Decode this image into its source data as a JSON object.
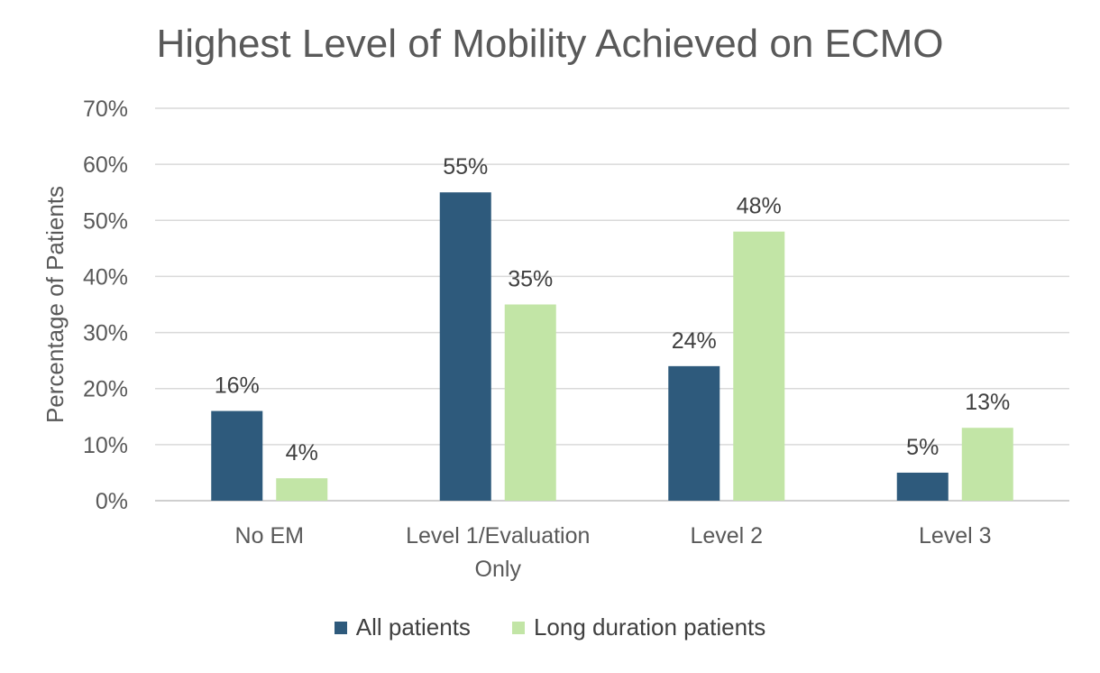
{
  "chart_data": {
    "type": "bar",
    "title": "Highest Level of Mobility Achieved on ECMO",
    "xlabel": "",
    "ylabel": "Percentage of Patients",
    "categories": [
      "No EM",
      "Level 1/Evaluation Only",
      "Level 2",
      "Level 3"
    ],
    "category_lines": [
      [
        "No EM"
      ],
      [
        "Level 1/Evaluation",
        "Only"
      ],
      [
        "Level 2"
      ],
      [
        "Level 3"
      ]
    ],
    "series": [
      {
        "name": "All patients",
        "values": [
          16,
          55,
          24,
          5
        ],
        "labels": [
          "16%",
          "55%",
          "24%",
          "5%"
        ],
        "color": "#2e5a7c"
      },
      {
        "name": "Long duration patients",
        "values": [
          4,
          35,
          48,
          13
        ],
        "labels": [
          "4%",
          "35%",
          "48%",
          "13%"
        ],
        "color": "#c2e5a6"
      }
    ],
    "ylim": [
      0,
      70
    ],
    "yticks": [
      0,
      10,
      20,
      30,
      40,
      50,
      60,
      70
    ],
    "ytick_labels": [
      "0%",
      "10%",
      "20%",
      "30%",
      "40%",
      "50%",
      "60%",
      "70%"
    ],
    "grid": true,
    "legend_position": "bottom"
  }
}
